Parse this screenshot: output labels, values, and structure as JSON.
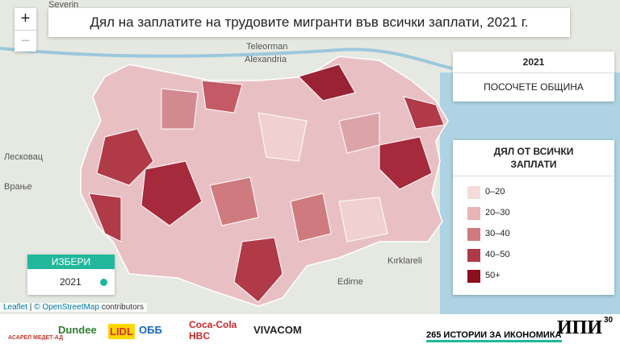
{
  "map": {
    "title": "Дял на заплатите на трудовите мигранти във всички заплати, 2021 г.",
    "zoom_in": "+",
    "zoom_out": "−",
    "info_box": {
      "year": "2021",
      "prompt": "ПОСОЧЕТЕ ОБЩИНА"
    },
    "legend": {
      "title": "ДЯЛ ОТ ВСИЧКИ ЗАПЛАТИ",
      "items": [
        {
          "label": "0–20",
          "color": "#f6dcd8"
        },
        {
          "label": "20–30",
          "color": "#e8b4b4"
        },
        {
          "label": "30–40",
          "color": "#cf7a7e"
        },
        {
          "label": "40–50",
          "color": "#b03a48"
        },
        {
          "label": "50+",
          "color": "#8c0f1e"
        }
      ]
    },
    "selector": {
      "title": "ИЗБЕРИ",
      "option": "2021"
    },
    "attribution": {
      "leaflet": "Leaflet",
      "osm": "© OpenStreetMap",
      "rest": "contributors"
    },
    "places": [
      "Severin",
      "Teleorman",
      "Alexandria",
      "Лесковац",
      "Врање",
      "Kırklareli",
      "Edirne"
    ]
  },
  "footer": {
    "sponsors": [
      "АСАРЕЛ МЕДЕТ-АД",
      "Dundee",
      "LIDL",
      "ОББ",
      "Coca-Cola HBC",
      "VIVACOM"
    ],
    "series": "265 ИСТОРИИ ЗА ИКОНОМИКА",
    "brand": "ИПИ",
    "anniversary": "30"
  }
}
